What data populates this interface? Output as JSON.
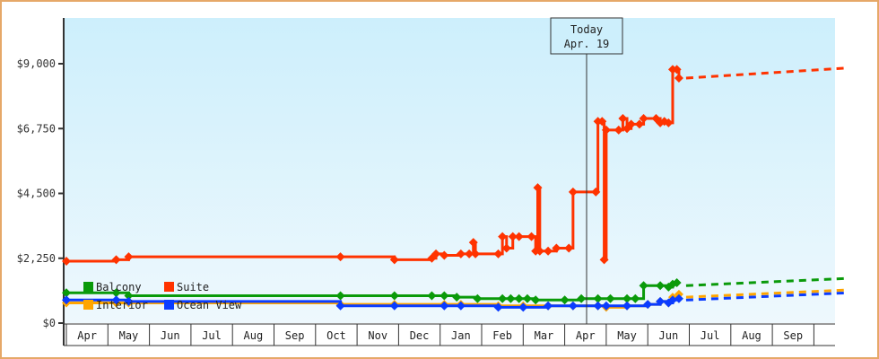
{
  "chart_data": {
    "type": "line",
    "title": "",
    "xlabel": "",
    "ylabel": "",
    "ylim": [
      0,
      10100
    ],
    "yticks": [
      "$0",
      "$2,250",
      "$4,500",
      "$6,750",
      "$9,000"
    ],
    "ytick_values": [
      0,
      2250,
      4500,
      6750,
      9000
    ],
    "x_months": [
      "Apr",
      "May",
      "Jun",
      "Jul",
      "Aug",
      "Sep",
      "Oct",
      "Nov",
      "Dec",
      "Jan",
      "Feb",
      "Mar",
      "Apr",
      "May",
      "Jun",
      "Jul",
      "Aug",
      "Sep"
    ],
    "grid": false,
    "background_gradient": [
      "#cdeffc",
      "#eef8fd"
    ],
    "today_marker": {
      "line1": "Today",
      "line2": "Apr. 19"
    },
    "legend": [
      {
        "name": "Balcony",
        "color": "#0a9a0a"
      },
      {
        "name": "Suite",
        "color": "#ff3300"
      },
      {
        "name": "Interior",
        "color": "#ffa500"
      },
      {
        "name": "Ocean View",
        "color": "#0a3cff"
      }
    ],
    "series": [
      {
        "name": "Suite",
        "color": "#ff3300",
        "history": [
          [
            0,
            2150
          ],
          [
            1.2,
            2200
          ],
          [
            1.5,
            2300
          ],
          [
            6.6,
            2300
          ],
          [
            7.9,
            2200
          ],
          [
            8.8,
            2250
          ],
          [
            8.9,
            2400
          ],
          [
            9.1,
            2350
          ],
          [
            9.5,
            2400
          ],
          [
            9.7,
            2400
          ],
          [
            9.8,
            2800
          ],
          [
            9.85,
            2400
          ],
          [
            10.4,
            2400
          ],
          [
            10.5,
            3000
          ],
          [
            10.6,
            2600
          ],
          [
            10.75,
            3000
          ],
          [
            10.9,
            3000
          ],
          [
            11.2,
            3000
          ],
          [
            11.3,
            2500
          ],
          [
            11.35,
            4700
          ],
          [
            11.4,
            2500
          ],
          [
            11.6,
            2500
          ],
          [
            11.8,
            2600
          ],
          [
            12.1,
            2600
          ],
          [
            12.2,
            4550
          ],
          [
            12.75,
            4550
          ],
          [
            12.8,
            7000
          ],
          [
            12.9,
            7000
          ],
          [
            12.95,
            2200
          ],
          [
            13.0,
            6700
          ],
          [
            13.3,
            6700
          ],
          [
            13.4,
            7100
          ],
          [
            13.5,
            6750
          ],
          [
            13.6,
            6900
          ],
          [
            13.8,
            6900
          ],
          [
            13.9,
            7100
          ],
          [
            14.2,
            7100
          ],
          [
            14.3,
            6950
          ],
          [
            14.4,
            7000
          ],
          [
            14.5,
            6950
          ],
          [
            14.6,
            8800
          ],
          [
            14.7,
            8800
          ],
          [
            14.75,
            8500
          ]
        ],
        "forecast": [
          [
            14.75,
            8500
          ],
          [
            18.8,
            8850
          ]
        ]
      },
      {
        "name": "Balcony",
        "color": "#0a9a0a",
        "history": [
          [
            0,
            1050
          ],
          [
            1.2,
            1050
          ],
          [
            1.5,
            950
          ],
          [
            6.6,
            950
          ],
          [
            7.9,
            950
          ],
          [
            8.8,
            950
          ],
          [
            9.1,
            950
          ],
          [
            9.4,
            900
          ],
          [
            9.9,
            850
          ],
          [
            10.5,
            850
          ],
          [
            10.7,
            850
          ],
          [
            10.9,
            850
          ],
          [
            11.1,
            850
          ],
          [
            11.3,
            800
          ],
          [
            12.0,
            800
          ],
          [
            12.4,
            850
          ],
          [
            12.8,
            850
          ],
          [
            13.1,
            850
          ],
          [
            13.5,
            850
          ],
          [
            13.7,
            850
          ],
          [
            13.9,
            1300
          ],
          [
            14.3,
            1300
          ],
          [
            14.5,
            1250
          ],
          [
            14.6,
            1350
          ],
          [
            14.7,
            1400
          ]
        ],
        "forecast": [
          [
            14.75,
            1300
          ],
          [
            18.8,
            1550
          ]
        ]
      },
      {
        "name": "Interior",
        "color": "#ffa500",
        "history": [
          [
            0,
            700
          ],
          [
            1.2,
            700
          ],
          [
            1.5,
            700
          ],
          [
            6.6,
            650
          ],
          [
            7.9,
            650
          ],
          [
            9.1,
            650
          ],
          [
            9.5,
            650
          ],
          [
            10.4,
            600
          ],
          [
            11.0,
            600
          ],
          [
            11.6,
            600
          ],
          [
            12.2,
            600
          ],
          [
            12.8,
            600
          ],
          [
            13.0,
            550
          ],
          [
            13.5,
            600
          ],
          [
            14.0,
            650
          ],
          [
            14.3,
            750
          ],
          [
            14.5,
            700
          ],
          [
            14.6,
            900
          ],
          [
            14.75,
            1000
          ]
        ],
        "forecast": [
          [
            14.75,
            900
          ],
          [
            18.8,
            1150
          ]
        ]
      },
      {
        "name": "Ocean View",
        "color": "#0a3cff",
        "history": [
          [
            0,
            800
          ],
          [
            1.2,
            800
          ],
          [
            1.5,
            750
          ],
          [
            6.6,
            600
          ],
          [
            7.9,
            600
          ],
          [
            9.1,
            600
          ],
          [
            9.5,
            600
          ],
          [
            10.4,
            550
          ],
          [
            11.0,
            550
          ],
          [
            11.6,
            600
          ],
          [
            12.2,
            600
          ],
          [
            12.8,
            600
          ],
          [
            13.0,
            600
          ],
          [
            13.5,
            600
          ],
          [
            14.0,
            650
          ],
          [
            14.3,
            750
          ],
          [
            14.5,
            700
          ],
          [
            14.6,
            800
          ],
          [
            14.75,
            850
          ]
        ],
        "forecast": [
          [
            14.75,
            800
          ],
          [
            18.8,
            1050
          ]
        ]
      }
    ]
  }
}
